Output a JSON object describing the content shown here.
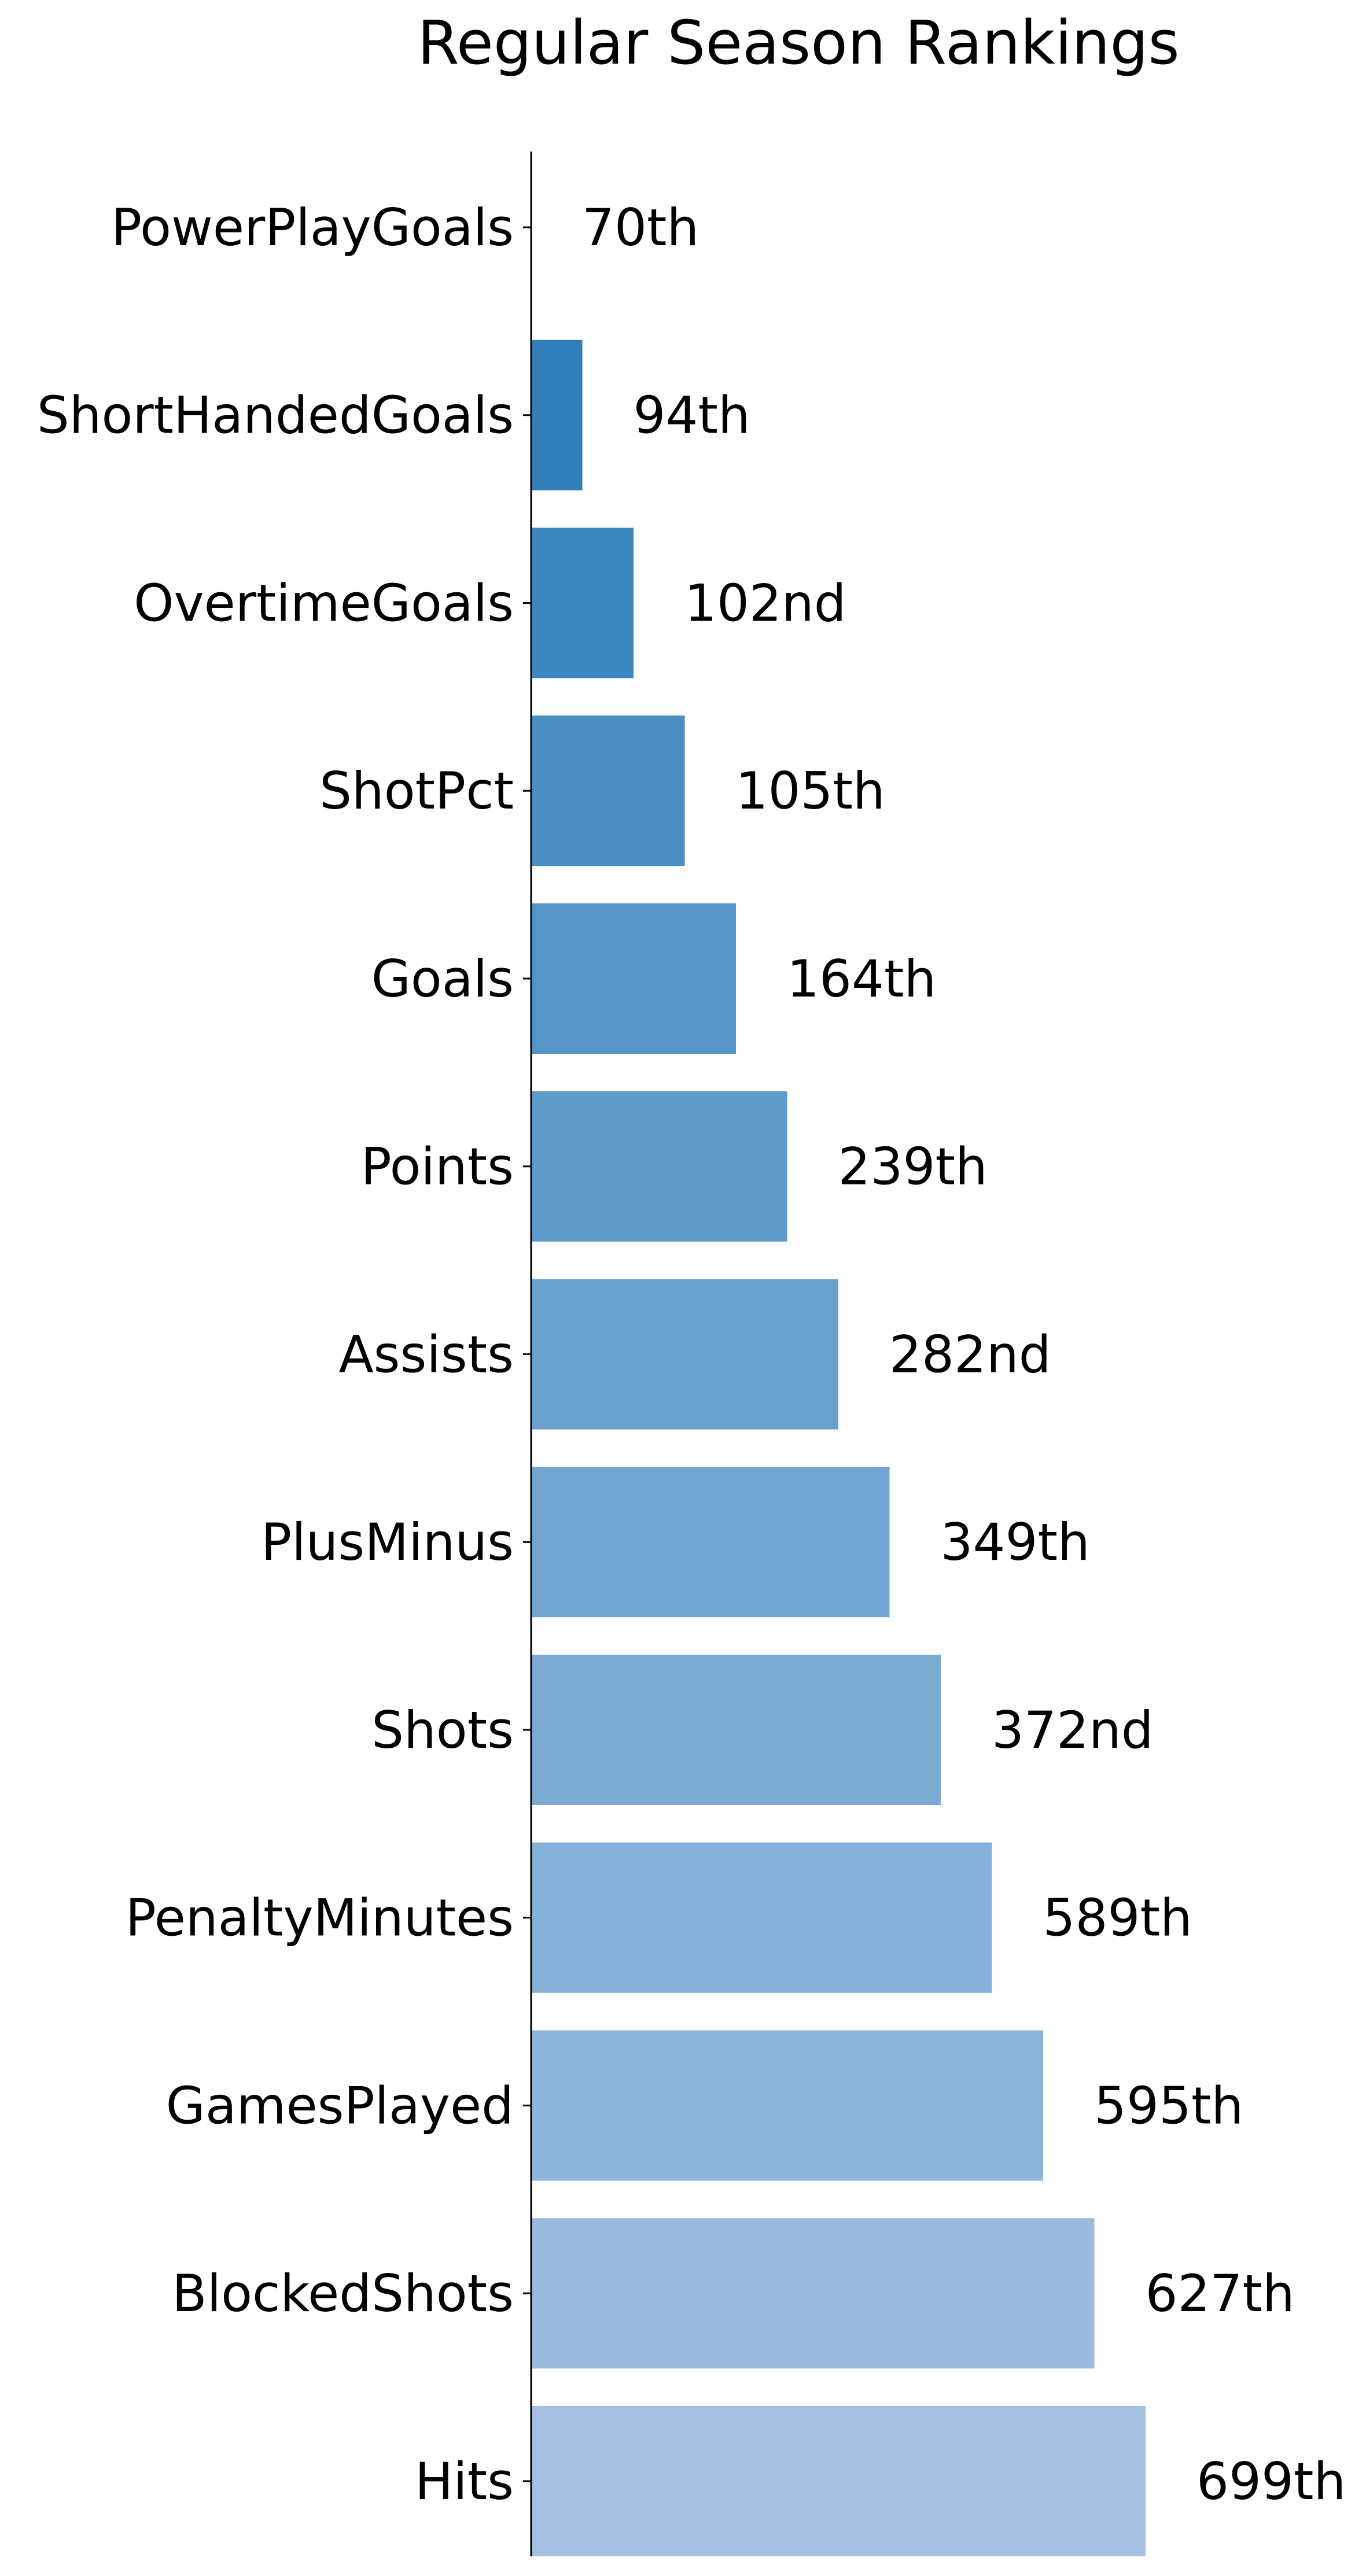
{
  "chart_data": {
    "type": "bar",
    "orientation": "horizontal",
    "title": "Regular Season Rankings",
    "xlabel": "",
    "ylabel": "",
    "categories": [
      "PowerPlayGoals",
      "ShortHandedGoals",
      "OvertimeGoals",
      "ShotPct",
      "Goals",
      "Points",
      "Assists",
      "PlusMinus",
      "Shots",
      "PenaltyMinutes",
      "GamesPlayed",
      "BlockedShots",
      "Hits"
    ],
    "values": [
      70,
      94,
      102,
      105,
      164,
      239,
      282,
      349,
      372,
      589,
      595,
      627,
      699
    ],
    "labels": [
      "70th",
      "94th",
      "102nd",
      "105th",
      "164th",
      "239th",
      "282nd",
      "349th",
      "372nd",
      "589th",
      "595th",
      "627th",
      "699th"
    ],
    "bar_value_scale": "index-based",
    "colors": [
      "#2171b5",
      "#3180bb",
      "#3e88c1",
      "#4a8fc4",
      "#5495c8",
      "#5e9acb",
      "#69a0cd",
      "#72a6d1",
      "#7baad3",
      "#85b0d7",
      "#8eb5da",
      "#98badd",
      "#a3c0e2"
    ],
    "axis_line_color": "#000000",
    "grid": false,
    "legend": "none",
    "x_axis_visible": false
  }
}
